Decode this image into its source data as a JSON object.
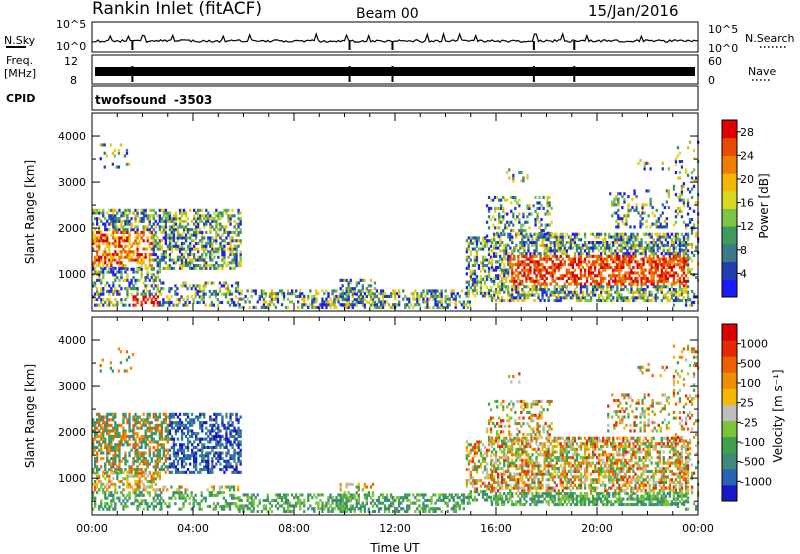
{
  "header": {
    "title": "Rankin Inlet (fitACF)",
    "beam": "Beam 00",
    "date": "15/Jan/2016"
  },
  "noise_panel": {
    "left_label": "N.Sky",
    "left_ticks": [
      "10^5",
      "10^0"
    ],
    "right_label": "N.Search",
    "right_ticks": [
      "10^5",
      "10^0"
    ]
  },
  "freq_panel": {
    "left_label_1": "Freq.",
    "left_label_2": "[MHz]",
    "left_ticks": [
      "12",
      "8"
    ],
    "right_label": "Nave",
    "right_ticks": [
      "60",
      "0"
    ]
  },
  "cpid_panel": {
    "label": "CPID",
    "program": "twofsound",
    "cpid_value": "-3503"
  },
  "colors": {
    "background": "#ffffff",
    "axis": "#000000",
    "ground_scatter": "#b4b4b4"
  },
  "chart_data": [
    {
      "type": "heatmap",
      "name": "power",
      "ylabel": "Slant Range [km]",
      "xlabel": "",
      "x_range": [
        0,
        24
      ],
      "y_range": [
        200,
        4500
      ],
      "y_ticks": [
        1000,
        2000,
        3000,
        4000
      ],
      "x_ticks": [
        "00:00",
        "04:00",
        "08:00",
        "12:00",
        "16:00",
        "20:00",
        "00:00"
      ],
      "colorbar_label": "Power [dB]",
      "colorbar_ticks": [
        4,
        8,
        12,
        16,
        20,
        24,
        28
      ],
      "colorbar_range": [
        0,
        30
      ],
      "colorbar_colors": [
        "#1a1aff",
        "#2040b0",
        "#3a7a8a",
        "#3f9a5c",
        "#7dc445",
        "#d8d820",
        "#f5b800",
        "#f07c00",
        "#e84a00",
        "#e00000"
      ]
    },
    {
      "type": "heatmap",
      "name": "velocity",
      "ylabel": "Slant Range [km]",
      "xlabel": "Time UT",
      "x_range": [
        0,
        24
      ],
      "y_range": [
        200,
        4500
      ],
      "y_ticks": [
        1000,
        2000,
        3000,
        4000
      ],
      "x_ticks": [
        "00:00",
        "04:00",
        "08:00",
        "12:00",
        "16:00",
        "20:00",
        "00:00"
      ],
      "colorbar_label": "Velocity [m s⁻¹]",
      "colorbar_ticks": [
        "1000",
        "500",
        "100",
        "25",
        "-25",
        "-100",
        "-500",
        "-1000"
      ],
      "colorbar_colors": [
        "#1818c8",
        "#2a62b4",
        "#3e8a7a",
        "#3fa050",
        "#7cc43a",
        "#bdbdbd",
        "#f5b800",
        "#f28c00",
        "#ec6200",
        "#e62a00",
        "#dc0000"
      ]
    }
  ]
}
